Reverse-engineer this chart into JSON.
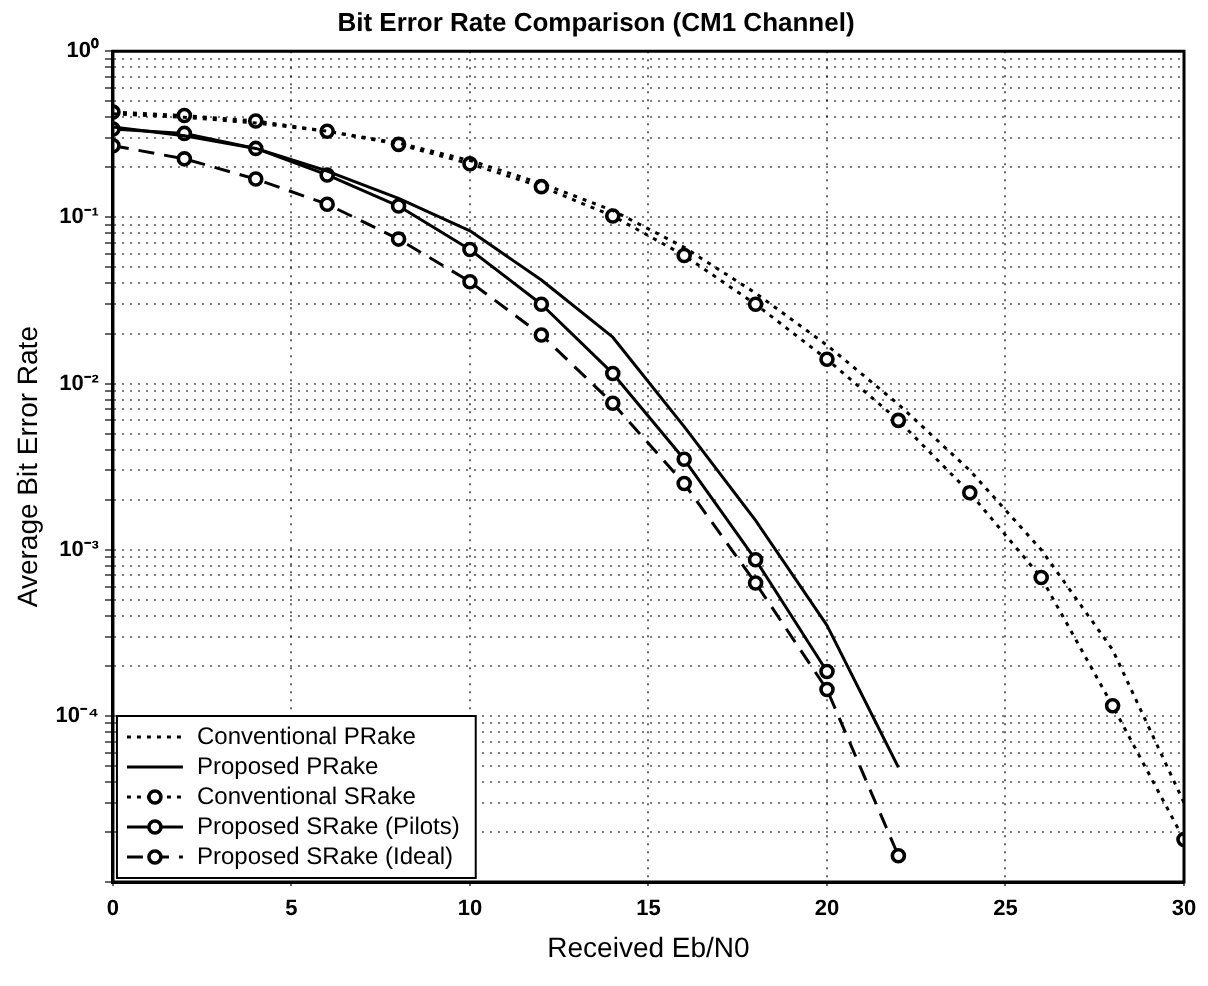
{
  "chart_data": {
    "type": "line",
    "title": "Bit Error Rate Comparison (CM1 Channel)",
    "xlabel": "Received Eb/N0",
    "ylabel": "Average Bit Error Rate",
    "log": "y",
    "grid": true,
    "legend": "bottom left",
    "xlim": [
      0,
      30
    ],
    "xticks": [
      0,
      5,
      10,
      15,
      20,
      25,
      30
    ],
    "ylim": [
      1e-05,
      1
    ],
    "yticks": [
      {
        "value": 1e-05,
        "label": null
      },
      {
        "value": 2e-05,
        "label": null
      },
      {
        "value": 3e-05,
        "label": null
      },
      {
        "value": 4e-05,
        "label": null
      },
      {
        "value": 5e-05,
        "label": null
      },
      {
        "value": 6e-05,
        "label": null
      },
      {
        "value": 7e-05,
        "label": null
      },
      {
        "value": 8e-05,
        "label": null
      },
      {
        "value": 9e-05,
        "label": null
      },
      {
        "value": 0.0001,
        "label": "10⁻⁴"
      },
      {
        "value": 0.0002,
        "label": null
      },
      {
        "value": 0.0003,
        "label": null
      },
      {
        "value": 0.0004,
        "label": null
      },
      {
        "value": 0.0005,
        "label": null
      },
      {
        "value": 0.0006,
        "label": null
      },
      {
        "value": 0.0007,
        "label": null
      },
      {
        "value": 0.0008,
        "label": null
      },
      {
        "value": 0.0009,
        "label": null
      },
      {
        "value": 0.001,
        "label": "10⁻³"
      },
      {
        "value": 0.002,
        "label": null
      },
      {
        "value": 0.003,
        "label": null
      },
      {
        "value": 0.004,
        "label": null
      },
      {
        "value": 0.005,
        "label": null
      },
      {
        "value": 0.006,
        "label": null
      },
      {
        "value": 0.007,
        "label": null
      },
      {
        "value": 0.008,
        "label": null
      },
      {
        "value": 0.009,
        "label": null
      },
      {
        "value": 0.01,
        "label": "10⁻²"
      },
      {
        "value": 0.02,
        "label": null
      },
      {
        "value": 0.03,
        "label": null
      },
      {
        "value": 0.04,
        "label": null
      },
      {
        "value": 0.05,
        "label": null
      },
      {
        "value": 0.06,
        "label": null
      },
      {
        "value": 0.07,
        "label": null
      },
      {
        "value": 0.08,
        "label": null
      },
      {
        "value": 0.09,
        "label": null
      },
      {
        "value": 0.1,
        "label": "10⁻¹"
      },
      {
        "value": 0.2,
        "label": null
      },
      {
        "value": 0.3,
        "label": null
      },
      {
        "value": 0.4,
        "label": null
      },
      {
        "value": 0.5,
        "label": null
      },
      {
        "value": 0.6,
        "label": null
      },
      {
        "value": 0.7,
        "label": null
      },
      {
        "value": 0.8,
        "label": null
      },
      {
        "value": 0.9,
        "label": null
      },
      {
        "value": 1,
        "label": "10⁰"
      }
    ],
    "series": [
      {
        "name": "Conventional PRake",
        "color": "#000000",
        "line_style": "dotted",
        "marker": "none",
        "x": [
          0,
          2,
          4,
          6,
          8,
          10,
          12,
          14,
          16,
          18,
          20,
          22,
          24,
          26,
          28,
          30
        ],
        "values": [
          0.42,
          0.4,
          0.37,
          0.33,
          0.28,
          0.22,
          0.16,
          0.11,
          0.066,
          0.035,
          0.017,
          0.0075,
          0.003,
          0.001,
          0.00025,
          3e-05
        ]
      },
      {
        "name": "Proposed PRake",
        "color": "#000000",
        "line_style": "solid",
        "marker": "none",
        "x": [
          0,
          2,
          4,
          6,
          8,
          10,
          12,
          14,
          16,
          18,
          20,
          22
        ],
        "values": [
          0.35,
          0.31,
          0.26,
          0.19,
          0.13,
          0.083,
          0.042,
          0.019,
          0.0055,
          0.0015,
          0.00035,
          4.9e-05
        ]
      },
      {
        "name": "Conventional SRake",
        "color": "#000000",
        "line_style": "dotted",
        "marker": "circle",
        "x": [
          0,
          2,
          4,
          6,
          8,
          10,
          12,
          14,
          16,
          18,
          20,
          22,
          24,
          26,
          28,
          30
        ],
        "values": [
          0.43,
          0.41,
          0.38,
          0.33,
          0.275,
          0.21,
          0.153,
          0.102,
          0.059,
          0.03,
          0.014,
          0.006,
          0.0022,
          0.00068,
          0.000115,
          1.8e-05
        ]
      },
      {
        "name": "Proposed SRake (Pilots)",
        "color": "#000000",
        "line_style": "solid",
        "marker": "circle",
        "x": [
          0,
          2,
          4,
          6,
          8,
          10,
          12,
          14,
          16,
          18,
          20
        ],
        "values": [
          0.34,
          0.32,
          0.26,
          0.18,
          0.117,
          0.064,
          0.03,
          0.0115,
          0.0035,
          0.00087,
          0.000185
        ]
      },
      {
        "name": "Proposed SRake (Ideal)",
        "color": "#000000",
        "line_style": "dashed",
        "marker": "circle",
        "x": [
          0,
          2,
          4,
          6,
          8,
          10,
          12,
          14,
          16,
          18,
          20,
          22
        ],
        "values": [
          0.27,
          0.225,
          0.17,
          0.12,
          0.074,
          0.041,
          0.0196,
          0.0076,
          0.0025,
          0.00063,
          0.000144,
          1.44e-05
        ]
      }
    ]
  }
}
